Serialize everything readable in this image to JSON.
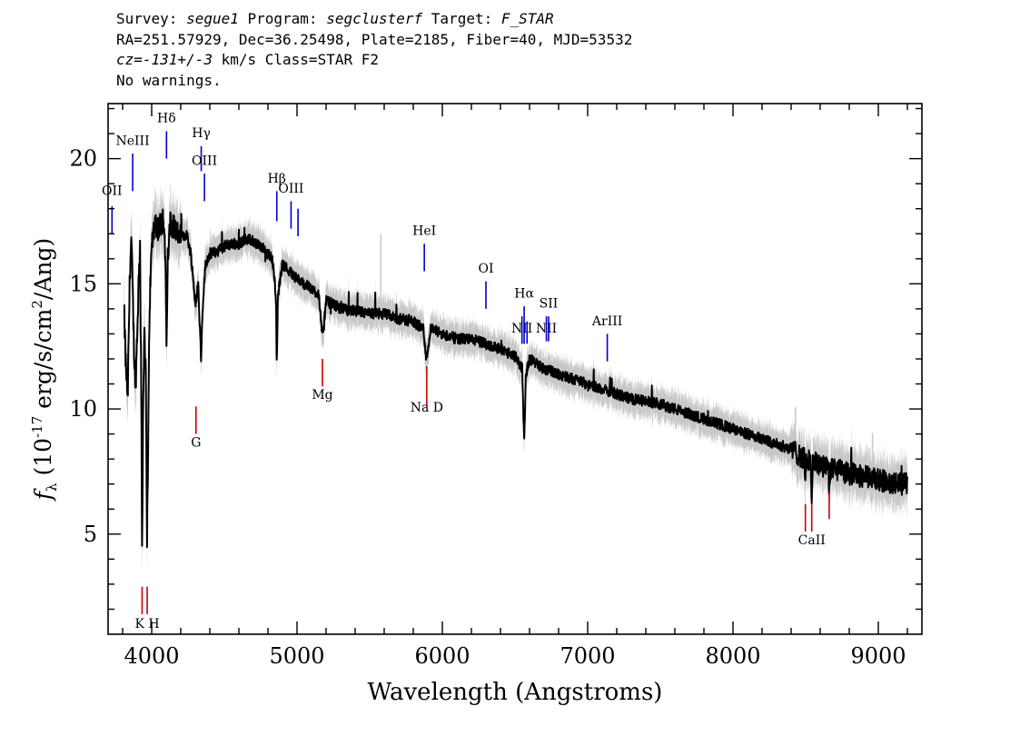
{
  "header": {
    "line1": {
      "survey_label": "Survey: ",
      "survey": "segue1",
      "program_label": " Program: ",
      "program": "segclusterf",
      "target_label": " Target: ",
      "target": "F_STAR"
    },
    "line2": "RA=251.57929, Dec=36.25498, Plate=2185, Fiber=40, MJD=53532",
    "line3": {
      "cz": "cz=-131+/-3",
      "rest": " km/s Class=STAR F2"
    },
    "line4": "No warnings."
  },
  "chart_data": {
    "type": "line",
    "xlabel": "Wavelength (Angstroms)",
    "ylabel": "f_λ (10^-17 erg/s/cm^2/Ang)",
    "ylabel_parts": {
      "f": "f",
      "sub": "λ",
      "pre": " (10",
      "exp": "-17",
      "mid": " erg/s/cm",
      "exp2": "2",
      "post": "/Ang)"
    },
    "xlim": [
      3700,
      9300
    ],
    "ylim": [
      1,
      22.2
    ],
    "x_ticks": [
      4000,
      5000,
      6000,
      7000,
      8000,
      9000
    ],
    "y_ticks": [
      5,
      10,
      15,
      20
    ],
    "grid": false,
    "colors": {
      "flux": "#000000",
      "error_band": "#c8c8c8",
      "emission_lines": "#0000cc",
      "absorption_lines": "#cc0000"
    },
    "flux_anchors": [
      [
        3810,
        14.0
      ],
      [
        3820,
        12.0
      ],
      [
        3835,
        10.5
      ],
      [
        3850,
        15.5
      ],
      [
        3860,
        16.8
      ],
      [
        3870,
        14.5
      ],
      [
        3880,
        12.0
      ],
      [
        3890,
        11.0
      ],
      [
        3900,
        13.0
      ],
      [
        3910,
        15.0
      ],
      [
        3920,
        16.5
      ],
      [
        3930,
        9.0
      ],
      [
        3934,
        4.5
      ],
      [
        3940,
        9.5
      ],
      [
        3950,
        13.5
      ],
      [
        3960,
        11.0
      ],
      [
        3968,
        5.0
      ],
      [
        3975,
        8.0
      ],
      [
        3985,
        14.0
      ],
      [
        4000,
        16.5
      ],
      [
        4020,
        17.5
      ],
      [
        4050,
        17.2
      ],
      [
        4080,
        17.7
      ],
      [
        4095,
        16.0
      ],
      [
        4102,
        12.0
      ],
      [
        4110,
        16.0
      ],
      [
        4130,
        17.5
      ],
      [
        4160,
        17.2
      ],
      [
        4200,
        16.8
      ],
      [
        4240,
        17.0
      ],
      [
        4270,
        16.2
      ],
      [
        4300,
        14.2
      ],
      [
        4320,
        15.0
      ],
      [
        4340,
        12.0
      ],
      [
        4350,
        14.0
      ],
      [
        4370,
        15.8
      ],
      [
        4400,
        16.2
      ],
      [
        4450,
        16.3
      ],
      [
        4500,
        16.5
      ],
      [
        4550,
        16.6
      ],
      [
        4600,
        16.6
      ],
      [
        4650,
        16.8
      ],
      [
        4700,
        16.7
      ],
      [
        4750,
        16.5
      ],
      [
        4800,
        16.2
      ],
      [
        4830,
        16.0
      ],
      [
        4855,
        14.5
      ],
      [
        4861,
        11.5
      ],
      [
        4868,
        14.5
      ],
      [
        4900,
        15.8
      ],
      [
        4950,
        15.5
      ],
      [
        5000,
        15.2
      ],
      [
        5050,
        15.0
      ],
      [
        5100,
        14.8
      ],
      [
        5150,
        14.6
      ],
      [
        5170,
        13.0
      ],
      [
        5185,
        13.4
      ],
      [
        5200,
        14.3
      ],
      [
        5250,
        14.2
      ],
      [
        5300,
        14.0
      ],
      [
        5400,
        13.9
      ],
      [
        5500,
        13.8
      ],
      [
        5600,
        13.8
      ],
      [
        5700,
        13.6
      ],
      [
        5800,
        13.5
      ],
      [
        5870,
        13.2
      ],
      [
        5890,
        12.0
      ],
      [
        5898,
        12.3
      ],
      [
        5920,
        13.2
      ],
      [
        6000,
        13.0
      ],
      [
        6100,
        12.8
      ],
      [
        6200,
        12.8
      ],
      [
        6300,
        12.6
      ],
      [
        6400,
        12.4
      ],
      [
        6500,
        12.1
      ],
      [
        6550,
        11.6
      ],
      [
        6563,
        8.6
      ],
      [
        6575,
        11.4
      ],
      [
        6600,
        12.0
      ],
      [
        6700,
        11.6
      ],
      [
        6800,
        11.4
      ],
      [
        6900,
        11.2
      ],
      [
        7000,
        11.0
      ],
      [
        7100,
        10.8
      ],
      [
        7200,
        10.6
      ],
      [
        7300,
        10.4
      ],
      [
        7400,
        10.3
      ],
      [
        7500,
        10.2
      ],
      [
        7600,
        10.0
      ],
      [
        7700,
        9.8
      ],
      [
        7800,
        9.6
      ],
      [
        7900,
        9.4
      ],
      [
        8000,
        9.2
      ],
      [
        8100,
        9.0
      ],
      [
        8200,
        8.8
      ],
      [
        8300,
        8.6
      ],
      [
        8400,
        8.4
      ],
      [
        8490,
        8.0
      ],
      [
        8498,
        7.2
      ],
      [
        8505,
        8.0
      ],
      [
        8535,
        7.9
      ],
      [
        8542,
        6.4
      ],
      [
        8550,
        7.9
      ],
      [
        8600,
        7.8
      ],
      [
        8655,
        7.6
      ],
      [
        8662,
        6.8
      ],
      [
        8670,
        7.6
      ],
      [
        8700,
        7.6
      ],
      [
        8800,
        7.4
      ],
      [
        8900,
        7.3
      ],
      [
        9000,
        7.2
      ],
      [
        9100,
        7.0
      ],
      [
        9200,
        7.0
      ]
    ],
    "emission_lines": [
      {
        "label": "OII",
        "x": 3727,
        "y0": 17.0,
        "y1": 18.1,
        "ty": 18.55
      },
      {
        "label": "NeIII",
        "x": 3869,
        "y0": 18.7,
        "y1": 20.2,
        "ty": 20.55
      },
      {
        "label": "Hδ",
        "x": 4102,
        "y0": 20.0,
        "y1": 21.1,
        "ty": 21.45
      },
      {
        "label": "Hγ",
        "x": 4341,
        "y0": 19.5,
        "y1": 20.5,
        "ty": 20.85
      },
      {
        "label": "OIII",
        "x": 4363,
        "y0": 18.3,
        "y1": 19.4,
        "ty": 19.75
      },
      {
        "label": "Hβ",
        "x": 4861,
        "y0": 17.5,
        "y1": 18.7,
        "ty": 19.05
      },
      {
        "label": "OIII",
        "x": 4959,
        "y0": 17.2,
        "y1": 18.3,
        "ty": 18.65
      },
      {
        "label": "",
        "x": 5007,
        "y0": 16.9,
        "y1": 18.0,
        "ty": 0
      },
      {
        "label": "HeI",
        "x": 5876,
        "y0": 15.5,
        "y1": 16.6,
        "ty": 16.95
      },
      {
        "label": "OI",
        "x": 6300,
        "y0": 14.0,
        "y1": 15.1,
        "ty": 15.45
      },
      {
        "label": "NII",
        "x": 6548,
        "y0": 12.6,
        "y1": 13.7,
        "ty": 13.05
      },
      {
        "label": "Hα",
        "x": 6563,
        "y0": 12.6,
        "y1": 14.1,
        "ty": 14.45
      },
      {
        "label": "",
        "x": 6583,
        "y0": 12.6,
        "y1": 13.5,
        "ty": 0
      },
      {
        "label": "NII",
        "x": 6716,
        "y0": 12.7,
        "y1": 13.7,
        "ty": 13.05
      },
      {
        "label": "SII",
        "x": 6731,
        "y0": 12.7,
        "y1": 13.7,
        "ty": 14.05
      },
      {
        "label": "ArIII",
        "x": 7135,
        "y0": 11.9,
        "y1": 13.0,
        "ty": 13.35
      }
    ],
    "absorption_lines": [
      {
        "label": "",
        "x": 3934,
        "y0": 1.8,
        "y1": 2.9,
        "ty": 0
      },
      {
        "label": "K H",
        "x": 3969,
        "y0": 1.8,
        "y1": 2.9,
        "ty": 1.25
      },
      {
        "label": "G",
        "x": 4305,
        "y0": 9.0,
        "y1": 10.1,
        "ty": 8.5
      },
      {
        "label": "Mg",
        "x": 5175,
        "y0": 10.9,
        "y1": 12.0,
        "ty": 10.4
      },
      {
        "label": "Na D",
        "x": 5893,
        "y0": 10.1,
        "y1": 11.7,
        "ty": 9.9
      },
      {
        "label": "",
        "x": 8498,
        "y0": 5.1,
        "y1": 6.2,
        "ty": 0
      },
      {
        "label": "CaII",
        "x": 8542,
        "y0": 5.1,
        "y1": 6.2,
        "ty": 4.6
      },
      {
        "label": "",
        "x": 8662,
        "y0": 5.6,
        "y1": 6.7,
        "ty": 0
      }
    ]
  }
}
